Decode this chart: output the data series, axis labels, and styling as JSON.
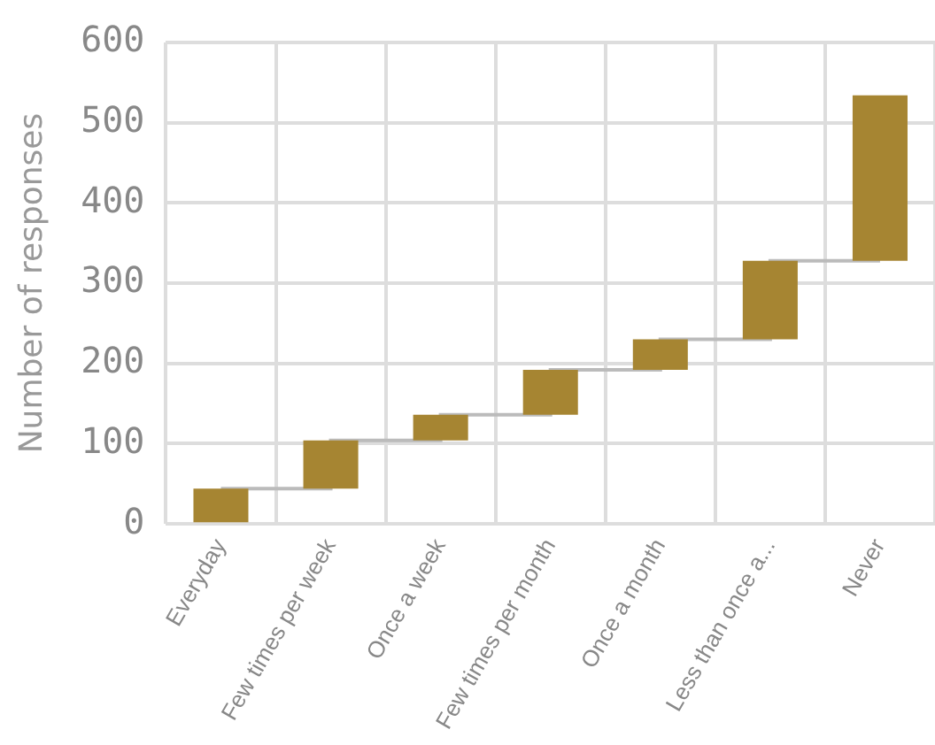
{
  "chart_data": {
    "type": "bar",
    "ylabel": "Number of responses",
    "categories": [
      "Everyday",
      "Few times per week",
      "Once a week",
      "Few times per month",
      "Once a month",
      "Less than once a...",
      "Never"
    ],
    "series": [
      {
        "color": "#a68532",
        "base": [
          0,
          44,
          104,
          136,
          192,
          230,
          328
        ],
        "values": [
          44,
          60,
          32,
          56,
          38,
          98,
          206
        ]
      },
      {
        "type": "step",
        "color": "#bbbbbb",
        "values": [
          44,
          104,
          136,
          192,
          230,
          328,
          328
        ]
      }
    ],
    "ylim": [
      0,
      600
    ],
    "yticks": [
      0,
      100,
      200,
      300,
      400,
      500,
      600
    ],
    "grid": true,
    "legend": false
  }
}
